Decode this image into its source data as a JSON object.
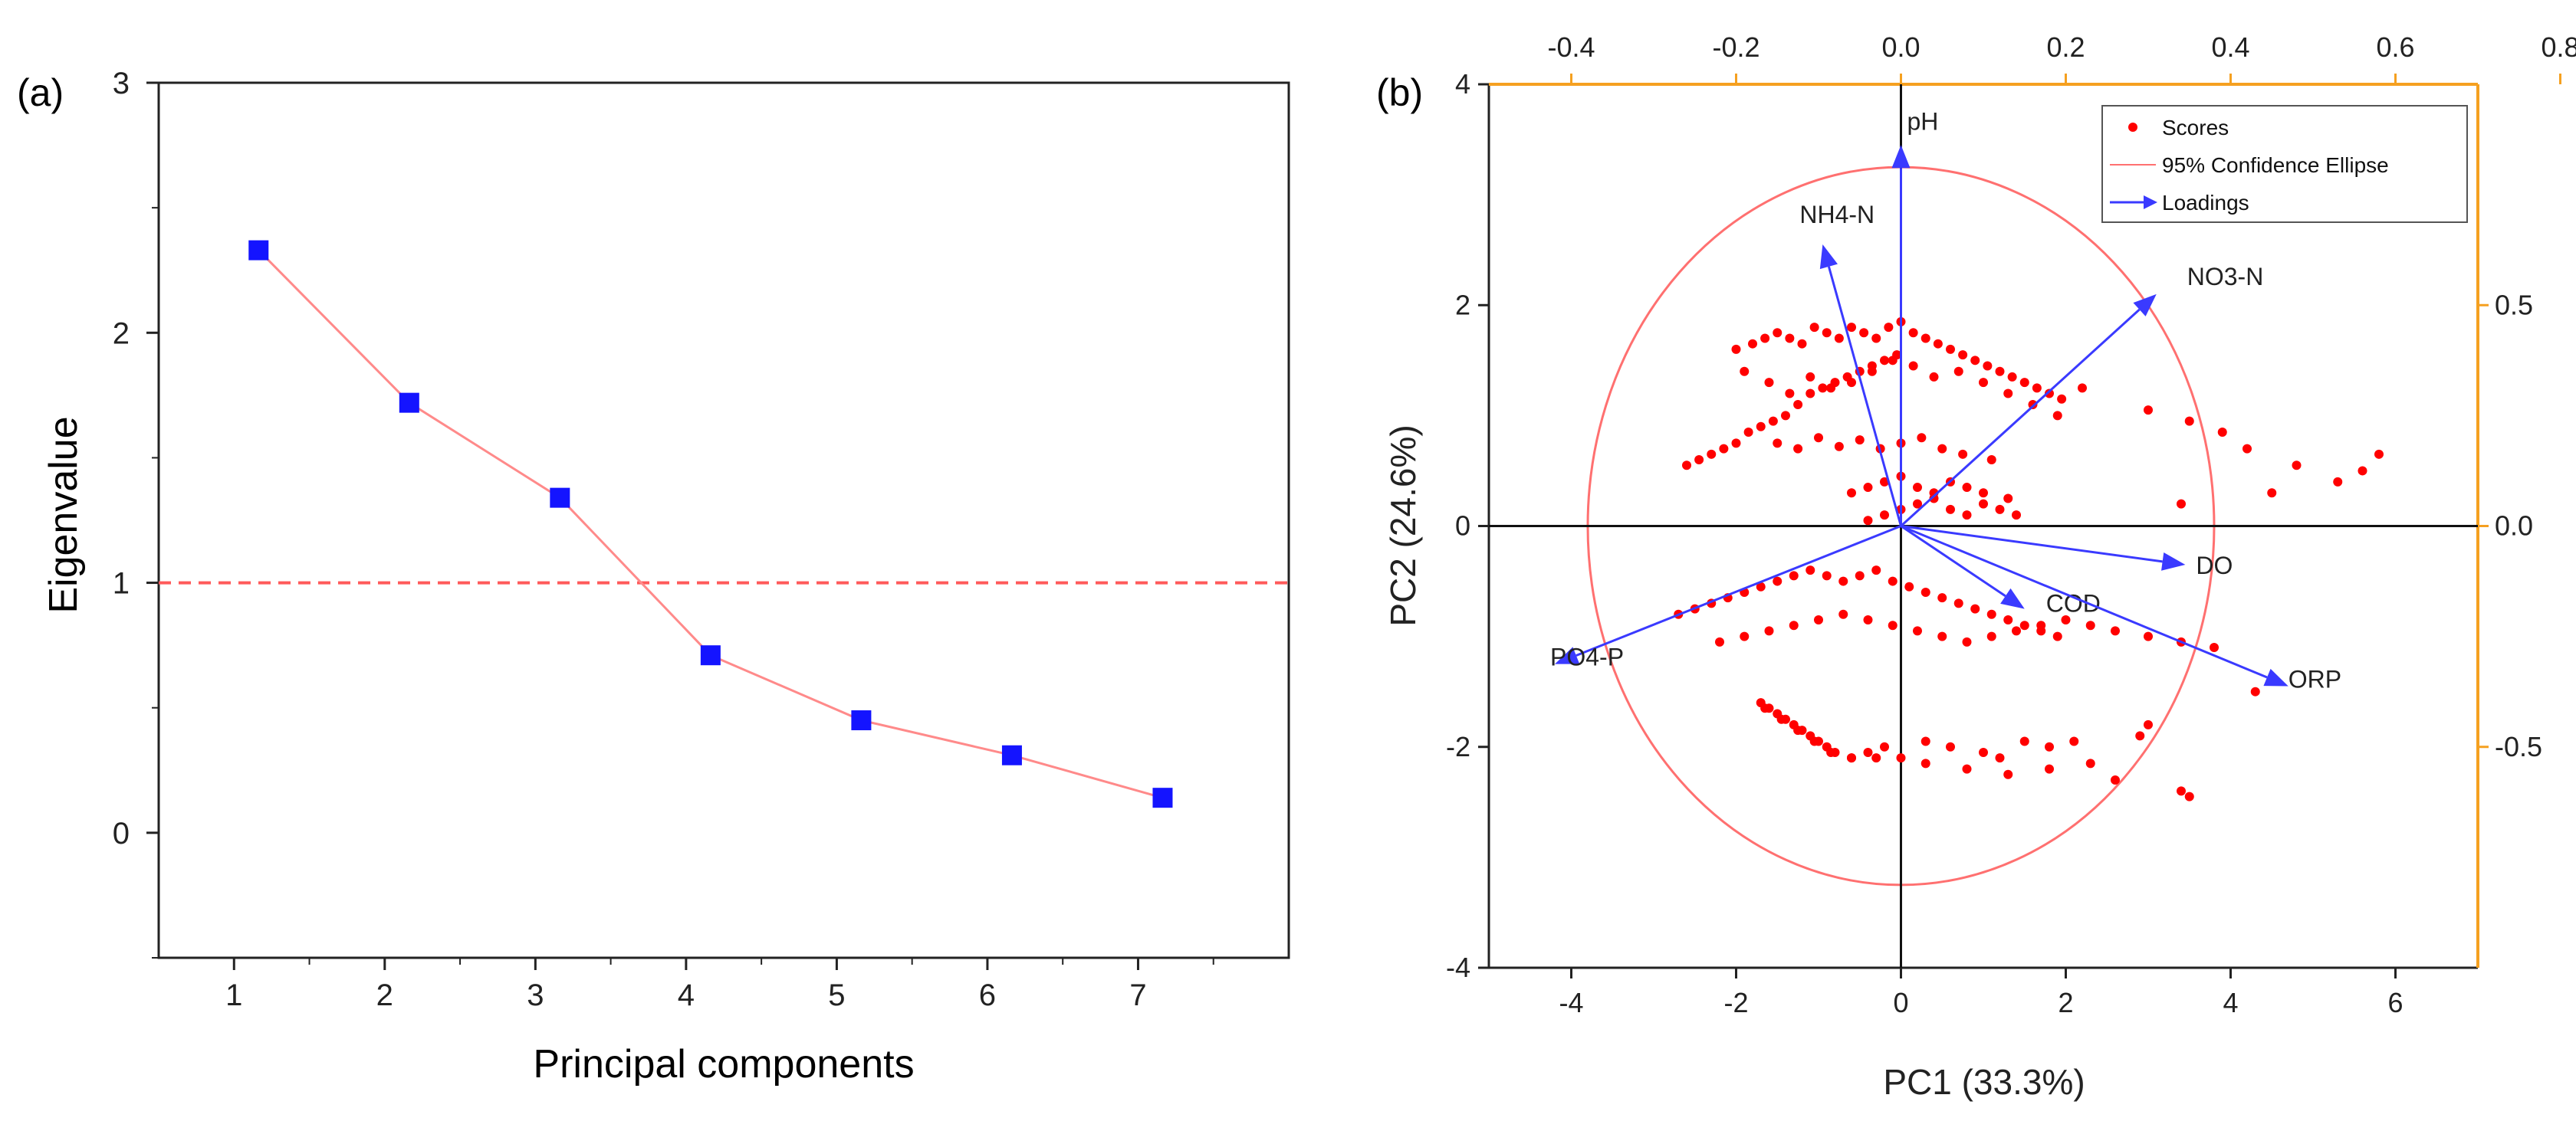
{
  "chart_data": [
    {
      "panel_label": "(a)",
      "type": "line",
      "title": "",
      "xlabel": "Principal components",
      "ylabel": "Eigenvalue",
      "xlim": [
        0.5,
        8.0
      ],
      "ylim": [
        -0.5,
        3.0
      ],
      "x_ticks": [
        1,
        2,
        3,
        4,
        5,
        6,
        7
      ],
      "y_ticks": [
        0,
        1,
        2,
        3
      ],
      "categories": [
        1,
        2,
        3,
        4,
        5,
        6,
        7
      ],
      "values": [
        2.33,
        1.72,
        1.34,
        0.71,
        0.45,
        0.31,
        0.14
      ],
      "reference_line": {
        "y": 1.0,
        "style": "dashed",
        "color": "#ff5a5a"
      },
      "colors": {
        "marker": "#1414ff",
        "line": "#ff8a8a"
      },
      "grid": false
    },
    {
      "panel_label": "(b)",
      "type": "scatter",
      "title": "",
      "xlabel": "PC1 (33.3%)",
      "ylabel": "PC2 (24.6%)",
      "xlim": [
        -5.0,
        7.0
      ],
      "ylim": [
        -4.0,
        4.0
      ],
      "x_ticks": [
        -4,
        -2,
        0,
        2,
        4,
        6
      ],
      "y_ticks": [
        -4,
        -2,
        0,
        2,
        4
      ],
      "top_axis_ticks": [
        "-0.4",
        "-0.2",
        "0.0",
        "0.2",
        "0.4",
        "0.6",
        "0.8"
      ],
      "right_axis_ticks": [
        "0.5",
        "0.0",
        "-0.5"
      ],
      "legend": {
        "position": "top-right",
        "entries": [
          "Scores",
          "95% Confidence Ellipse",
          "Loadings"
        ]
      },
      "ellipse": {
        "cx": 0.0,
        "cy": 0.0,
        "rx": 3.8,
        "ry": 3.25
      },
      "loadings": [
        {
          "name": "pH",
          "x": 0.0,
          "y": 3.45
        },
        {
          "name": "NH4-N",
          "x": -0.95,
          "y": 2.55
        },
        {
          "name": "NO3-N",
          "x": 3.1,
          "y": 2.1
        },
        {
          "name": "DO",
          "x": 3.45,
          "y": -0.35
        },
        {
          "name": "COD",
          "x": 1.5,
          "y": -0.75
        },
        {
          "name": "ORP",
          "x": 4.7,
          "y": -1.45
        },
        {
          "name": "PO4-P",
          "x": -4.2,
          "y": -1.25
        }
      ],
      "scores": {
        "x": [
          -2.6,
          -2.45,
          -2.3,
          -2.15,
          -2.0,
          -1.85,
          -1.7,
          -1.55,
          -1.4,
          -1.25,
          -1.1,
          -0.95,
          -0.8,
          -0.65,
          -0.5,
          -0.35,
          -0.2,
          -0.05,
          -2.0,
          -1.8,
          -1.65,
          -1.5,
          -1.35,
          -1.2,
          -1.05,
          -0.9,
          -0.75,
          -0.6,
          -0.45,
          -0.3,
          -0.15,
          0.0,
          0.15,
          0.3,
          0.45,
          0.6,
          0.75,
          0.9,
          1.05,
          1.2,
          1.35,
          1.5,
          1.65,
          1.8,
          1.95,
          -1.9,
          -1.6,
          -1.35,
          -1.1,
          -0.85,
          -0.6,
          -0.35,
          -0.1,
          0.15,
          0.4,
          0.7,
          1.0,
          1.3,
          1.6,
          1.9,
          2.2,
          -1.5,
          -1.25,
          -1.0,
          -0.75,
          -0.5,
          -0.25,
          0.0,
          0.25,
          0.5,
          0.75,
          1.1,
          -0.6,
          -0.4,
          -0.2,
          0.0,
          0.2,
          0.4,
          0.6,
          0.8,
          1.0,
          1.3,
          -0.4,
          -0.2,
          0.0,
          0.2,
          0.4,
          0.6,
          0.8,
          1.0,
          1.2,
          1.4,
          3.0,
          3.5,
          3.9,
          4.2,
          4.5,
          4.8,
          5.3,
          5.6,
          5.8,
          3.4,
          -2.7,
          -2.5,
          -2.3,
          -2.1,
          -1.9,
          -1.7,
          -1.5,
          -1.3,
          -1.1,
          -0.9,
          -0.7,
          -0.5,
          -0.3,
          -0.1,
          0.1,
          0.3,
          0.5,
          0.7,
          0.9,
          1.1,
          1.3,
          1.5,
          1.7,
          1.9,
          -2.2,
          -1.9,
          -1.6,
          -1.3,
          -1.0,
          -0.7,
          -0.4,
          -0.1,
          0.2,
          0.5,
          0.8,
          1.1,
          1.4,
          1.7,
          2.0,
          2.3,
          2.6,
          3.0,
          3.4,
          3.8,
          4.3,
          -1.7,
          -1.6,
          -1.5,
          -1.4,
          -1.3,
          -1.2,
          -1.1,
          -1.0,
          -0.9,
          -0.8,
          -0.6,
          -0.4,
          -0.2,
          0.0,
          0.3,
          0.6,
          1.0,
          1.2,
          1.5,
          1.8,
          2.1,
          2.9,
          3.0,
          3.4,
          3.5,
          -1.65,
          -1.45,
          -1.25,
          -1.05,
          -0.85,
          -0.6,
          -0.3,
          0.3,
          0.8,
          1.3,
          1.8,
          2.3,
          2.6
        ],
        "y": [
          0.55,
          0.6,
          0.65,
          0.7,
          0.75,
          0.85,
          0.9,
          0.95,
          1.0,
          1.1,
          1.2,
          1.25,
          1.3,
          1.35,
          1.4,
          1.45,
          1.5,
          1.55,
          1.6,
          1.65,
          1.7,
          1.75,
          1.7,
          1.65,
          1.8,
          1.75,
          1.7,
          1.8,
          1.75,
          1.7,
          1.8,
          1.85,
          1.75,
          1.7,
          1.65,
          1.6,
          1.55,
          1.5,
          1.45,
          1.4,
          1.35,
          1.3,
          1.25,
          1.2,
          1.15,
          1.4,
          1.3,
          1.2,
          1.35,
          1.25,
          1.3,
          1.4,
          1.5,
          1.45,
          1.35,
          1.4,
          1.3,
          1.2,
          1.1,
          1.0,
          1.25,
          0.75,
          0.7,
          0.8,
          0.72,
          0.78,
          0.7,
          0.75,
          0.8,
          0.7,
          0.65,
          0.6,
          0.3,
          0.35,
          0.4,
          0.45,
          0.35,
          0.3,
          0.4,
          0.35,
          0.3,
          0.25,
          0.05,
          0.1,
          0.15,
          0.2,
          0.25,
          0.15,
          0.1,
          0.2,
          0.15,
          0.1,
          1.05,
          0.95,
          0.85,
          0.7,
          0.3,
          0.55,
          0.4,
          0.5,
          0.65,
          0.2,
          -0.8,
          -0.75,
          -0.7,
          -0.65,
          -0.6,
          -0.55,
          -0.5,
          -0.45,
          -0.4,
          -0.45,
          -0.5,
          -0.45,
          -0.4,
          -0.5,
          -0.55,
          -0.6,
          -0.65,
          -0.7,
          -0.75,
          -0.8,
          -0.85,
          -0.9,
          -0.95,
          -1.0,
          -1.05,
          -1.0,
          -0.95,
          -0.9,
          -0.85,
          -0.8,
          -0.85,
          -0.9,
          -0.95,
          -1.0,
          -1.05,
          -1.0,
          -0.95,
          -0.9,
          -0.85,
          -0.9,
          -0.95,
          -1.0,
          -1.05,
          -1.1,
          -1.5,
          -1.6,
          -1.65,
          -1.7,
          -1.75,
          -1.8,
          -1.85,
          -1.9,
          -1.95,
          -2.0,
          -2.05,
          -2.1,
          -2.05,
          -2.0,
          -2.1,
          -1.95,
          -2.0,
          -2.05,
          -2.1,
          -1.95,
          -2.0,
          -1.95,
          -1.9,
          -1.8,
          -2.4,
          -2.45,
          -1.65,
          -1.75,
          -1.85,
          -1.95,
          -2.05,
          -2.1,
          -2.1,
          -2.15,
          -2.2,
          -2.25,
          -2.2,
          -2.15,
          -2.3
        ]
      },
      "colors": {
        "scores": "#ff0000",
        "ellipse": "#ff7070",
        "loadings": "#3a3aff",
        "right_top_axes": "#f5a020"
      },
      "grid": false
    }
  ]
}
